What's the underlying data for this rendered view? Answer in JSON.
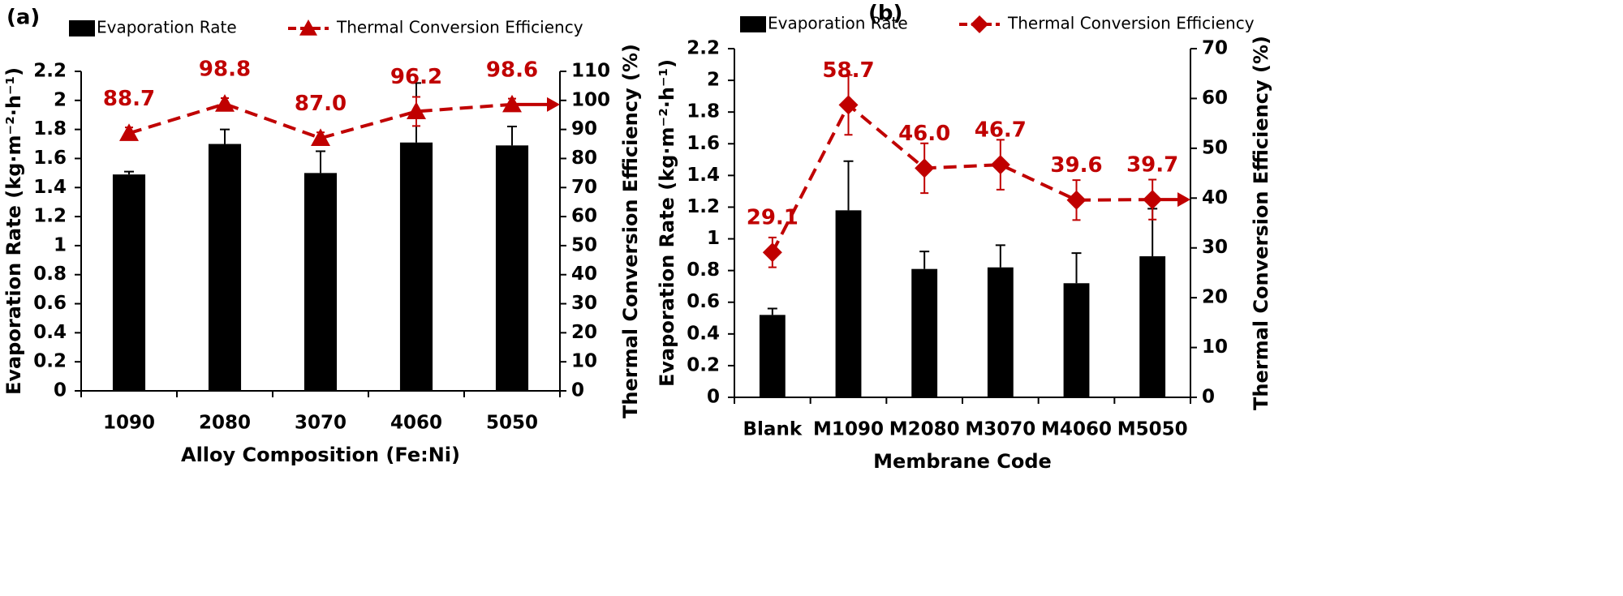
{
  "chart_data": [
    {
      "type": "combo",
      "panel": "(a)",
      "x_label": "Alloy Composition (Fe:Ni)",
      "y_label": "Evaporation Rate (kg·m⁻²·h⁻¹)",
      "y2_label": "Thermal Conversion Efficiency (%)",
      "categories": [
        "1090",
        "2080",
        "3070",
        "4060",
        "5050"
      ],
      "ylim": [
        0,
        2.2
      ],
      "yticks": [
        0,
        0.2,
        0.4,
        0.6,
        0.8,
        1,
        1.2,
        1.4,
        1.6,
        1.8,
        2,
        2.2
      ],
      "y2lim": [
        0,
        110
      ],
      "y2ticks": [
        0,
        10,
        20,
        30,
        40,
        50,
        60,
        70,
        80,
        90,
        100,
        110
      ],
      "series": [
        {
          "name": "Evaporation Rate",
          "type": "bar",
          "color": "#000000",
          "values": [
            1.49,
            1.7,
            1.5,
            1.71,
            1.69
          ],
          "errors": [
            0.02,
            0.1,
            0.15,
            0.41,
            0.13
          ]
        },
        {
          "name": "Thermal Conversion Efficiency",
          "type": "line",
          "axis": "y2",
          "marker": "triangle",
          "color": "#c00000",
          "values": [
            88.7,
            98.8,
            87.0,
            96.2,
            98.6
          ],
          "value_labels": [
            "88.7",
            "98.8",
            "87.0",
            "96.2",
            "98.6"
          ],
          "errors": [
            2,
            2,
            2,
            5,
            2
          ]
        }
      ]
    },
    {
      "type": "combo",
      "panel": "(b)",
      "x_label": "Membrane Code",
      "y_label": "Evaporation Rate (kg·m⁻²·h⁻¹)",
      "y2_label": "Thermal Conversion Efficiency (%)",
      "categories": [
        "Blank",
        "M1090",
        "M2080",
        "M3070",
        "M4060",
        "M5050"
      ],
      "ylim": [
        0,
        2.2
      ],
      "yticks": [
        0,
        0.2,
        0.4,
        0.6,
        0.8,
        1,
        1.2,
        1.4,
        1.6,
        1.8,
        2,
        2.2
      ],
      "y2lim": [
        0,
        70
      ],
      "y2ticks": [
        0,
        10,
        20,
        30,
        40,
        50,
        60,
        70
      ],
      "series": [
        {
          "name": "Evaporation Rate",
          "type": "bar",
          "color": "#000000",
          "values": [
            0.52,
            1.18,
            0.81,
            0.82,
            0.72,
            0.89
          ],
          "errors": [
            0.04,
            0.31,
            0.11,
            0.14,
            0.19,
            0.3
          ]
        },
        {
          "name": "Thermal Conversion Efficiency",
          "type": "line",
          "axis": "y2",
          "marker": "diamond",
          "color": "#c00000",
          "values": [
            29.1,
            58.7,
            46.0,
            46.7,
            39.6,
            39.7
          ],
          "value_labels": [
            "29.1",
            "58.7",
            "46.0",
            "46.7",
            "39.6",
            "39.7"
          ],
          "errors": [
            3,
            6,
            5,
            5,
            4,
            4
          ]
        }
      ]
    }
  ]
}
